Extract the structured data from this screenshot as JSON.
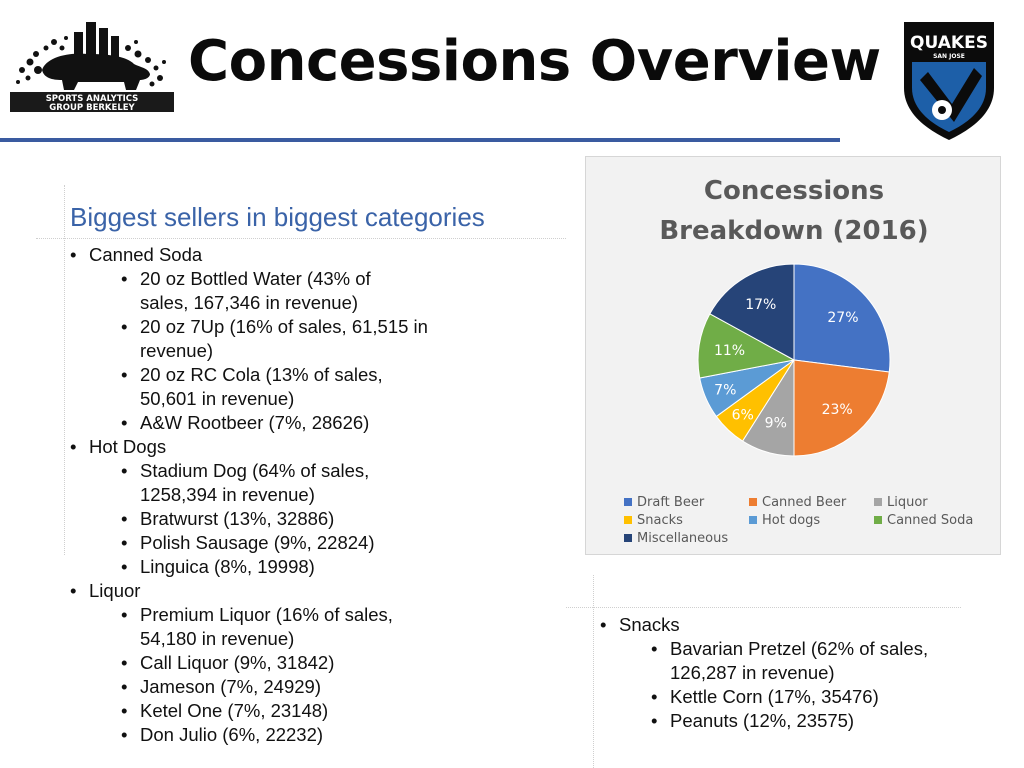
{
  "header": {
    "title": "Concessions Overview",
    "logo_left_text": [
      "SPORTS ANALYTICS",
      "GROUP BERKELEY"
    ],
    "logo_right_text": [
      "QUAKES",
      "SAN JOSE"
    ],
    "logo_left_icon": "bear-building-logo-icon",
    "logo_right_icon": "quakes-shield-logo-icon",
    "colors": {
      "rule": "#3a5ba0",
      "subtitle": "#3a63a8"
    }
  },
  "left": {
    "subtitle": "Biggest sellers in biggest categories",
    "categories": [
      {
        "name": "Canned Soda",
        "items": [
          [
            "20 oz Bottled Water (43% of",
            "sales, 167,346 in revenue)"
          ],
          [
            "20 oz 7Up (16% of sales, 61,515 in",
            "revenue)"
          ],
          [
            "20 oz RC Cola (13% of sales,",
            "50,601 in revenue)"
          ],
          [
            "A&W Rootbeer (7%, 28626)"
          ]
        ]
      },
      {
        "name": "Hot Dogs",
        "items": [
          [
            "Stadium Dog (64% of sales,",
            "1258,394 in revenue)"
          ],
          [
            "Bratwurst (13%, 32886)"
          ],
          [
            "Polish Sausage (9%, 22824)"
          ],
          [
            "Linguica (8%, 19998)"
          ]
        ]
      },
      {
        "name": "Liquor",
        "items": [
          [
            "Premium Liquor (16% of sales,",
            "54,180 in revenue)"
          ],
          [
            "Call Liquor (9%, 31842)"
          ],
          [
            "Jameson (7%, 24929)"
          ],
          [
            "Ketel One (7%, 23148)"
          ],
          [
            "Don Julio (6%, 22232)"
          ]
        ]
      }
    ]
  },
  "right": {
    "categories": [
      {
        "name": "Snacks",
        "items": [
          [
            "Bavarian Pretzel (62% of sales,",
            "126,287 in revenue)"
          ],
          [
            "Kettle Corn (17%, 35476)"
          ],
          [
            "Peanuts (12%, 23575)"
          ]
        ]
      }
    ]
  },
  "chart_data": {
    "type": "pie",
    "title": "Concessions Breakdown (2016)",
    "title_lines": [
      "Concessions",
      "Breakdown (2016)"
    ],
    "categories": [
      "Draft Beer",
      "Canned Beer",
      "Liquor",
      "Snacks",
      "Hot dogs",
      "Canned Soda",
      "Miscellaneous"
    ],
    "values": [
      27,
      23,
      9,
      6,
      7,
      11,
      17
    ],
    "value_labels": [
      "27%",
      "23%",
      "9%",
      "6%",
      "7%",
      "11%",
      "17%"
    ],
    "colors": [
      "#4472c4",
      "#ed7d31",
      "#a5a5a5",
      "#ffc000",
      "#5b9bd5",
      "#70ad47",
      "#264478"
    ],
    "legend_position": "bottom",
    "start": "12 o'clock, clockwise"
  }
}
